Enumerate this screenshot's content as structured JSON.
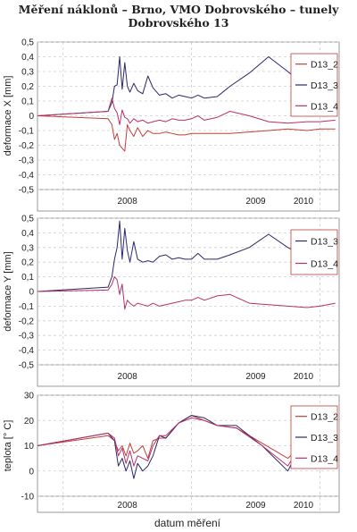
{
  "title_line1": "Měření náklonů – Brno, VMO Dobrovského – tunely",
  "title_line2": "Dobrovského 13",
  "xlabel": "datum měření",
  "colors": {
    "D13_2": "#c0403a",
    "D13_3": "#2a2868",
    "D13_4": "#b8306a"
  },
  "chart_data": [
    {
      "type": "line",
      "ylabel": "deformace X [mm]",
      "ylim": [
        -0.5,
        0.5
      ],
      "yticks": [
        "-0,5",
        "-0,4",
        "-0,3",
        "-0,2",
        "-0,1",
        "0",
        "0,1",
        "0,2",
        "0,3",
        "0,4",
        "0,5"
      ],
      "xticks": [
        "2008",
        "2009",
        "2010"
      ],
      "xlim": [
        2007.8,
        2010.15
      ],
      "grid": true,
      "legend": "top-right",
      "series": [
        {
          "name": "D13_2",
          "x": [
            2007.8,
            2008.35,
            2008.38,
            2008.4,
            2008.42,
            2008.44,
            2008.46,
            2008.48,
            2008.5,
            2008.52,
            2008.55,
            2008.58,
            2008.62,
            2008.66,
            2008.7,
            2008.75,
            2008.8,
            2008.85,
            2008.9,
            2008.95,
            2009.0,
            2009.05,
            2009.1,
            2009.2,
            2009.3,
            2009.45,
            2009.6,
            2009.75,
            2009.9,
            2010.0,
            2010.12
          ],
          "y": [
            0,
            -0.02,
            -0.06,
            -0.16,
            -0.12,
            -0.2,
            -0.22,
            -0.24,
            -0.06,
            -0.1,
            -0.14,
            -0.08,
            -0.14,
            -0.1,
            -0.12,
            -0.12,
            -0.11,
            -0.12,
            -0.13,
            -0.13,
            -0.12,
            -0.12,
            -0.12,
            -0.12,
            -0.12,
            -0.11,
            -0.1,
            -0.09,
            -0.1,
            -0.09,
            -0.09
          ]
        },
        {
          "name": "D13_3",
          "x": [
            2007.8,
            2008.35,
            2008.38,
            2008.4,
            2008.42,
            2008.44,
            2008.46,
            2008.48,
            2008.5,
            2008.52,
            2008.55,
            2008.58,
            2008.62,
            2008.66,
            2008.7,
            2008.75,
            2008.8,
            2008.85,
            2008.9,
            2008.95,
            2009.0,
            2009.05,
            2009.1,
            2009.2,
            2009.3,
            2009.45,
            2009.6,
            2009.75,
            2009.9,
            2010.0,
            2010.12
          ],
          "y": [
            0,
            0.03,
            0.09,
            0.2,
            0.21,
            0.4,
            0.18,
            0.36,
            0.2,
            0.16,
            0.22,
            0.17,
            0.15,
            0.27,
            0.19,
            0.14,
            0.15,
            0.12,
            0.14,
            0.13,
            0.12,
            0.14,
            0.12,
            0.13,
            0.2,
            0.29,
            0.4,
            0.3,
            0.19,
            0.18,
            0.18
          ]
        },
        {
          "name": "D13_4",
          "x": [
            2007.8,
            2008.35,
            2008.38,
            2008.4,
            2008.42,
            2008.44,
            2008.46,
            2008.48,
            2008.5,
            2008.52,
            2008.55,
            2008.58,
            2008.62,
            2008.66,
            2008.7,
            2008.75,
            2008.8,
            2008.85,
            2008.9,
            2008.95,
            2009.0,
            2009.05,
            2009.1,
            2009.2,
            2009.3,
            2009.45,
            2009.6,
            2009.75,
            2009.9,
            2010.0,
            2010.12
          ],
          "y": [
            0,
            0.03,
            0.12,
            0.05,
            0.02,
            -0.06,
            0.04,
            -0.01,
            -0.02,
            -0.05,
            -0.02,
            -0.04,
            -0.03,
            -0.05,
            -0.04,
            -0.03,
            -0.04,
            -0.02,
            -0.03,
            -0.03,
            -0.02,
            0,
            -0.03,
            -0.01,
            0.03,
            0,
            -0.04,
            -0.05,
            -0.04,
            -0.04,
            -0.03
          ]
        }
      ]
    },
    {
      "type": "line",
      "ylabel": "deformace Y [mm]",
      "ylim": [
        -0.5,
        0.5
      ],
      "yticks": [
        "-0,5",
        "-0,4",
        "-0,3",
        "-0,2",
        "-0,1",
        "0",
        "0,1",
        "0,2",
        "0,3",
        "0,4",
        "0,5"
      ],
      "xticks": [
        "2008",
        "2009",
        "2010"
      ],
      "xlim": [
        2007.8,
        2010.15
      ],
      "grid": true,
      "legend": "top-right",
      "series": [
        {
          "name": "D13_3",
          "x": [
            2007.8,
            2008.35,
            2008.38,
            2008.4,
            2008.42,
            2008.44,
            2008.46,
            2008.48,
            2008.5,
            2008.52,
            2008.55,
            2008.58,
            2008.62,
            2008.66,
            2008.7,
            2008.75,
            2008.8,
            2008.85,
            2008.9,
            2008.95,
            2009.0,
            2009.05,
            2009.1,
            2009.2,
            2009.3,
            2009.45,
            2009.6,
            2009.75,
            2009.9,
            2010.0,
            2010.12
          ],
          "y": [
            0,
            0.03,
            0.1,
            0.22,
            0.3,
            0.48,
            0.22,
            0.43,
            0.28,
            0.2,
            0.34,
            0.22,
            0.2,
            0.21,
            0.2,
            0.24,
            0.25,
            0.22,
            0.23,
            0.22,
            0.22,
            0.26,
            0.22,
            0.22,
            0.25,
            0.3,
            0.39,
            0.3,
            0.23,
            0.24,
            0.25
          ]
        },
        {
          "name": "D13_4",
          "x": [
            2007.8,
            2008.35,
            2008.38,
            2008.4,
            2008.42,
            2008.44,
            2008.46,
            2008.48,
            2008.5,
            2008.52,
            2008.55,
            2008.58,
            2008.62,
            2008.66,
            2008.7,
            2008.75,
            2008.8,
            2008.85,
            2008.9,
            2008.95,
            2009.0,
            2009.05,
            2009.1,
            2009.2,
            2009.3,
            2009.45,
            2009.6,
            2009.75,
            2009.9,
            2010.0,
            2010.12
          ],
          "y": [
            0,
            0.01,
            0.05,
            0.1,
            0.08,
            -0.02,
            0.05,
            -0.12,
            -0.06,
            -0.08,
            -0.1,
            -0.08,
            -0.09,
            -0.1,
            -0.08,
            -0.1,
            -0.09,
            -0.08,
            -0.07,
            -0.06,
            -0.06,
            -0.04,
            -0.06,
            -0.03,
            -0.02,
            -0.08,
            -0.09,
            -0.1,
            -0.11,
            -0.1,
            -0.08
          ]
        }
      ]
    },
    {
      "type": "line",
      "ylabel": "teplota [° C]",
      "ylim": [
        -10,
        30
      ],
      "yticks": [
        "-10",
        "0",
        "10",
        "20",
        "30"
      ],
      "xticks": [
        "2008",
        "2009",
        "2010"
      ],
      "xlim": [
        2007.8,
        2010.15
      ],
      "grid": true,
      "legend": "top-right",
      "series": [
        {
          "name": "D13_2",
          "x": [
            2007.8,
            2008.35,
            2008.4,
            2008.43,
            2008.46,
            2008.49,
            2008.52,
            2008.55,
            2008.58,
            2008.62,
            2008.66,
            2008.7,
            2008.75,
            2008.8,
            2008.9,
            2009.0,
            2009.1,
            2009.2,
            2009.35,
            2009.55,
            2009.75,
            2009.9,
            2010.12
          ],
          "y": [
            10,
            14,
            12,
            8,
            10,
            6,
            11,
            7,
            8,
            10,
            5,
            12,
            13,
            13,
            19,
            22,
            20,
            18,
            17,
            11,
            5,
            12,
            20
          ]
        },
        {
          "name": "D13_3",
          "x": [
            2007.8,
            2008.35,
            2008.4,
            2008.43,
            2008.46,
            2008.49,
            2008.52,
            2008.55,
            2008.58,
            2008.62,
            2008.66,
            2008.7,
            2008.75,
            2008.8,
            2008.9,
            2009.0,
            2009.1,
            2009.2,
            2009.35,
            2009.55,
            2009.75,
            2009.9,
            2010.12
          ],
          "y": [
            10,
            15,
            12,
            2,
            5,
            0,
            4,
            -3,
            3,
            0,
            2,
            6,
            14,
            13,
            19,
            22,
            21,
            18,
            18,
            10,
            0,
            15,
            22
          ]
        },
        {
          "name": "D13_4",
          "x": [
            2007.8,
            2008.35,
            2008.4,
            2008.43,
            2008.46,
            2008.49,
            2008.52,
            2008.55,
            2008.58,
            2008.62,
            2008.66,
            2008.7,
            2008.75,
            2008.8,
            2008.9,
            2009.0,
            2009.1,
            2009.2,
            2009.35,
            2009.55,
            2009.75,
            2009.9,
            2010.12
          ],
          "y": [
            10,
            15,
            13,
            6,
            9,
            3,
            8,
            2,
            6,
            5,
            4,
            10,
            14,
            14,
            19,
            21,
            20,
            18,
            17,
            10,
            2,
            14,
            21
          ]
        }
      ]
    }
  ]
}
